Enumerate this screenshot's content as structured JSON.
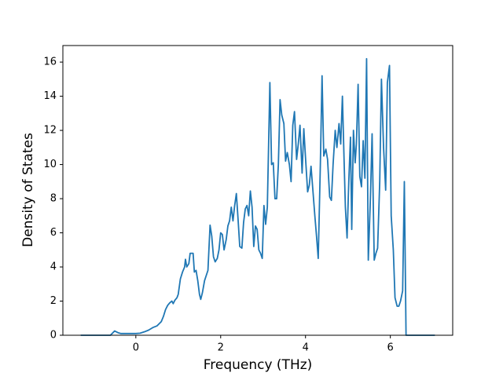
{
  "chart_data": {
    "type": "line",
    "xlabel": "Frequency (THz)",
    "ylabel": "Density of States",
    "color": "#1f77b4",
    "x": [
      -1.3,
      -0.6,
      -0.5,
      -0.42,
      -0.35,
      0,
      0.1,
      0.2,
      0.3,
      0.4,
      0.5,
      0.6,
      0.65,
      0.7,
      0.75,
      0.8,
      0.85,
      0.88,
      0.92,
      0.97,
      1.0,
      1.05,
      1.1,
      1.15,
      1.17,
      1.2,
      1.25,
      1.28,
      1.35,
      1.38,
      1.42,
      1.46,
      1.5,
      1.53,
      1.57,
      1.62,
      1.66,
      1.7,
      1.75,
      1.79,
      1.83,
      1.87,
      1.92,
      1.96,
      2.0,
      2.04,
      2.08,
      2.13,
      2.17,
      2.21,
      2.25,
      2.29,
      2.33,
      2.37,
      2.41,
      2.45,
      2.5,
      2.54,
      2.58,
      2.62,
      2.66,
      2.7,
      2.74,
      2.78,
      2.82,
      2.86,
      2.9,
      2.94,
      2.98,
      3.02,
      3.06,
      3.1,
      3.16,
      3.2,
      3.24,
      3.28,
      3.32,
      3.36,
      3.4,
      3.44,
      3.49,
      3.53,
      3.57,
      3.62,
      3.66,
      3.7,
      3.74,
      3.79,
      3.83,
      3.87,
      3.92,
      3.96,
      4.0,
      4.05,
      4.09,
      4.13,
      4.18,
      4.22,
      4.26,
      4.3,
      4.35,
      4.39,
      4.43,
      4.48,
      4.52,
      4.57,
      4.61,
      4.65,
      4.7,
      4.74,
      4.79,
      4.83,
      4.87,
      4.91,
      4.94,
      4.98,
      5.02,
      5.06,
      5.09,
      5.13,
      5.17,
      5.2,
      5.24,
      5.28,
      5.32,
      5.36,
      5.4,
      5.44,
      5.48,
      5.53,
      5.57,
      5.62,
      5.66,
      5.7,
      5.75,
      5.79,
      5.84,
      5.89,
      5.93,
      5.98,
      6.02,
      6.07,
      6.11,
      6.16,
      6.2,
      6.24,
      6.29,
      6.33,
      6.37,
      7.05
    ],
    "values": [
      0,
      0,
      0.25,
      0.15,
      0.1,
      0.1,
      0.12,
      0.2,
      0.3,
      0.45,
      0.55,
      0.8,
      1.1,
      1.5,
      1.75,
      1.9,
      2.0,
      1.85,
      2.05,
      2.2,
      2.4,
      3.3,
      3.7,
      4.0,
      4.45,
      4.0,
      4.2,
      4.8,
      4.8,
      3.7,
      3.8,
      3.2,
      2.4,
      2.1,
      2.5,
      3.2,
      3.5,
      3.8,
      6.45,
      5.8,
      4.6,
      4.3,
      4.5,
      5.0,
      6.0,
      5.9,
      5.0,
      5.6,
      6.4,
      6.7,
      7.5,
      6.7,
      7.6,
      8.3,
      6.8,
      5.2,
      5.1,
      6.6,
      7.4,
      7.6,
      7.0,
      8.45,
      7.5,
      5.2,
      6.4,
      6.2,
      5.0,
      4.8,
      4.5,
      7.6,
      6.5,
      7.5,
      14.8,
      10.0,
      10.1,
      8.0,
      8.0,
      10.0,
      13.8,
      12.9,
      12.4,
      10.2,
      10.7,
      10.0,
      9.0,
      12.3,
      13.1,
      10.3,
      11.2,
      12.3,
      9.5,
      12.1,
      10.4,
      8.4,
      8.8,
      9.9,
      8.3,
      7.0,
      5.8,
      4.5,
      10.0,
      15.2,
      10.5,
      10.9,
      10.3,
      8.1,
      7.9,
      10.0,
      12.0,
      11.0,
      12.4,
      11.2,
      14.0,
      10.2,
      7.5,
      5.7,
      9.0,
      11.6,
      6.2,
      12.0,
      10.1,
      11.2,
      14.7,
      9.3,
      8.7,
      11.4,
      9.2,
      16.2,
      4.4,
      8.0,
      11.8,
      4.4,
      4.8,
      5.1,
      9.0,
      15.0,
      11.0,
      8.5,
      14.8,
      15.8,
      7.0,
      5.0,
      2.2,
      1.7,
      1.7,
      2.0,
      2.6,
      9.0,
      0,
      0
    ],
    "xlim": [
      -1.72,
      7.47
    ],
    "ylim": [
      0,
      16.97
    ],
    "xticks": [
      0,
      2,
      4,
      6
    ],
    "yticks": [
      0,
      2,
      4,
      6,
      8,
      10,
      12,
      14,
      16
    ]
  }
}
